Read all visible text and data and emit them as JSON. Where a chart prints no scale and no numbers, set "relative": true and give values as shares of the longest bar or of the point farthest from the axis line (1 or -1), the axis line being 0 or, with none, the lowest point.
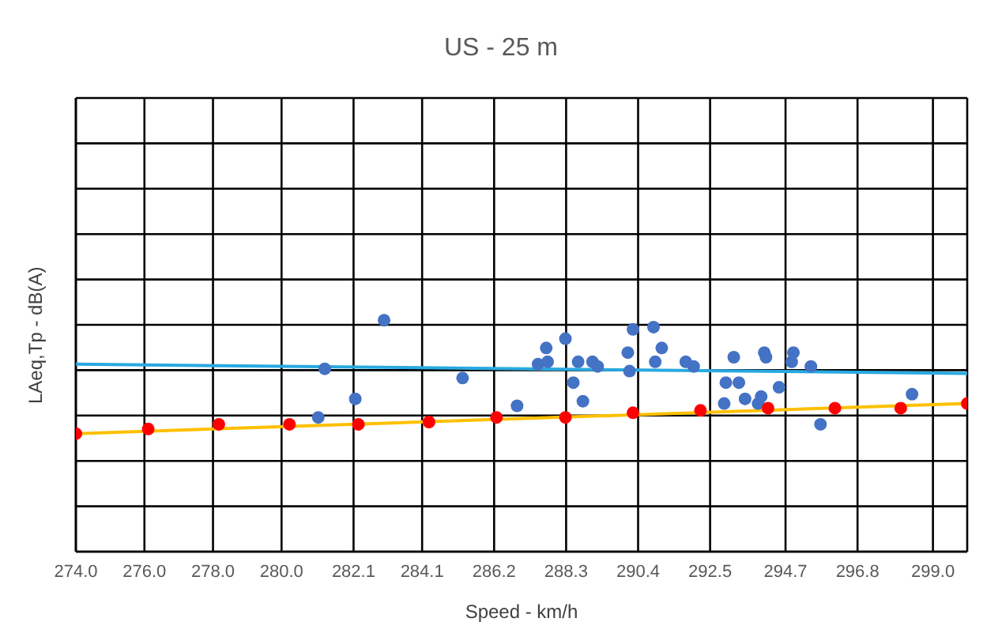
{
  "chart_data": {
    "type": "scatter",
    "title": "US - 25 m",
    "xlabel": "Speed  -  km/h",
    "ylabel": "LAeq,Tp  -  dB(A)",
    "relative": true,
    "grid": true,
    "marker": "circle",
    "xlim": [
      274,
      300
    ],
    "xticks": [
      {
        "value": 274,
        "label": "274.0"
      },
      {
        "value": 276,
        "label": "276.0"
      },
      {
        "value": 278,
        "label": "278.0"
      },
      {
        "value": 280,
        "label": "280.0"
      },
      {
        "value": 282.1,
        "label": "282.1"
      },
      {
        "value": 284.1,
        "label": "284.1"
      },
      {
        "value": 286.2,
        "label": "286.2"
      },
      {
        "value": 288.3,
        "label": "288.3"
      },
      {
        "value": 290.4,
        "label": "290.4"
      },
      {
        "value": 292.5,
        "label": "292.5"
      },
      {
        "value": 294.7,
        "label": "294.7"
      },
      {
        "value": 296.8,
        "label": "296.8"
      },
      {
        "value": 299,
        "label": "299.0"
      }
    ],
    "series": [
      {
        "color": "#4472c4",
        "x": [
          281.26,
          282.15,
          281.07,
          282.99,
          285.28,
          286.87,
          287.48,
          287.72,
          287.76,
          288.28,
          288.51,
          288.65,
          288.79,
          289.07,
          289.22,
          290.1,
          290.15,
          290.25,
          290.85,
          291.09,
          290.9,
          291.79,
          292.02,
          292.91,
          292.96,
          293.19,
          293.34,
          293.52,
          293.9,
          293.99,
          294.08,
          294.13,
          294.51,
          294.88,
          294.93,
          295.44,
          295.72,
          298.39
        ],
        "values": [
          0.79,
          0.66,
          0.58,
          1.0,
          0.75,
          0.63,
          0.81,
          0.88,
          0.82,
          0.92,
          0.73,
          0.82,
          0.65,
          0.82,
          0.8,
          0.86,
          0.78,
          0.96,
          0.97,
          0.88,
          0.82,
          0.82,
          0.8,
          0.64,
          0.73,
          0.84,
          0.73,
          0.66,
          0.64,
          0.67,
          0.86,
          0.84,
          0.71,
          0.82,
          0.86,
          0.8,
          0.55,
          0.68
        ]
      },
      {
        "color": "#ff0000",
        "x": [
          274.0,
          276.11,
          278.17,
          280.23,
          282.24,
          284.3,
          286.27,
          288.28,
          290.25,
          292.22,
          294.19,
          296.14,
          298.06,
          300.0
        ],
        "values": [
          0.51,
          0.53,
          0.55,
          0.55,
          0.55,
          0.56,
          0.58,
          0.58,
          0.6,
          0.61,
          0.62,
          0.62,
          0.62,
          0.64
        ]
      },
      {
        "type": "line",
        "color": "#29a9e0",
        "marker": "none",
        "x": [
          274,
          300
        ],
        "values": [
          0.81,
          0.77
        ]
      },
      {
        "type": "line",
        "color": "#ffc000",
        "marker": "none",
        "x": [
          274,
          300
        ],
        "values": [
          0.51,
          0.64
        ]
      }
    ]
  }
}
